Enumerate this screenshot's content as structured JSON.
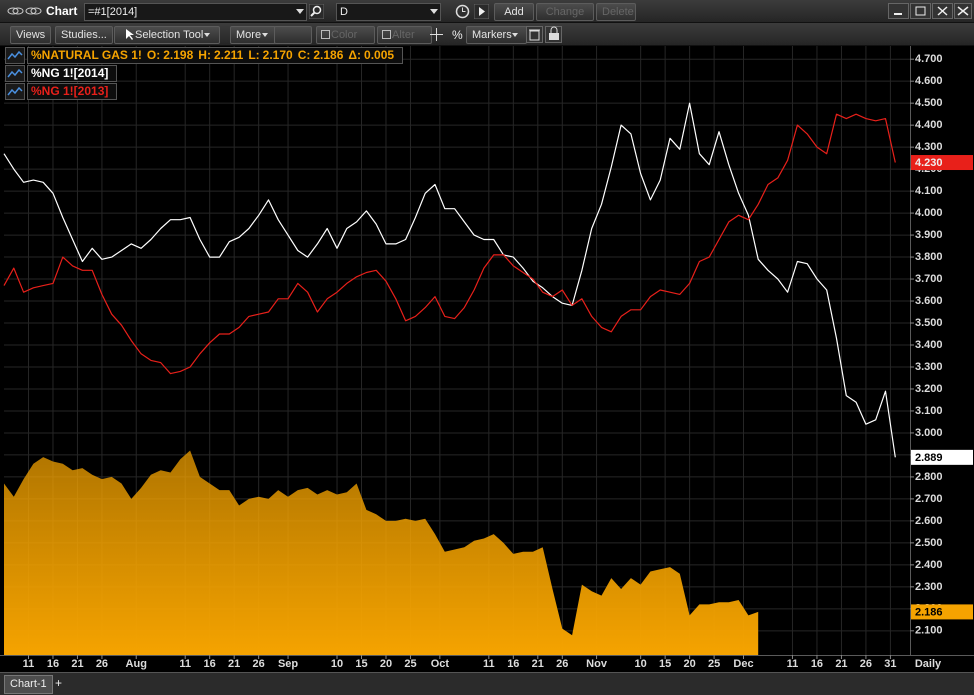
{
  "toolbar": {
    "title": "Chart",
    "symbol": "=#1[2014]",
    "search": "D",
    "add": "Add",
    "change": "Change",
    "delete": "Delete"
  },
  "toolbar2": {
    "views": "Views",
    "studies": "Studies...",
    "tool": "Selection Tool",
    "more": "More",
    "color": "Color",
    "alter": "Alter",
    "percent": "%",
    "markers": "Markers"
  },
  "tabs": {
    "active": "Chart-1",
    "add": "+"
  },
  "chart_data": {
    "type": "line",
    "x": [
      0,
      2,
      4,
      6,
      8,
      10,
      12,
      14,
      16,
      18,
      20,
      22,
      24,
      26,
      28,
      30,
      32,
      34,
      36,
      38,
      40,
      42,
      44,
      46,
      48,
      50,
      52,
      54,
      56,
      58,
      60,
      62,
      64,
      66,
      68,
      70,
      72,
      74,
      76,
      78,
      80,
      82,
      84,
      86,
      88,
      90,
      92,
      94,
      96,
      98,
      100,
      102,
      104,
      106,
      108,
      110,
      112,
      114,
      116,
      118,
      120,
      122,
      124,
      126,
      128,
      130,
      132,
      134,
      136,
      138,
      140,
      142,
      144,
      146,
      148,
      150,
      152,
      154,
      156,
      158,
      160,
      162,
      164,
      166,
      168,
      170,
      172,
      174,
      176,
      178,
      180,
      182
    ],
    "xlim": [
      0,
      185
    ],
    "xticks": [
      {
        "value": 5,
        "label": "11"
      },
      {
        "value": 10,
        "label": "16"
      },
      {
        "value": 15,
        "label": "21"
      },
      {
        "value": 20,
        "label": "26"
      },
      {
        "value": 27,
        "label": "Aug"
      },
      {
        "value": 37,
        "label": "11"
      },
      {
        "value": 42,
        "label": "16"
      },
      {
        "value": 47,
        "label": "21"
      },
      {
        "value": 52,
        "label": "26"
      },
      {
        "value": 58,
        "label": "Sep"
      },
      {
        "value": 68,
        "label": "10"
      },
      {
        "value": 73,
        "label": "15"
      },
      {
        "value": 78,
        "label": "20"
      },
      {
        "value": 83,
        "label": "25"
      },
      {
        "value": 89,
        "label": "Oct"
      },
      {
        "value": 99,
        "label": "11"
      },
      {
        "value": 104,
        "label": "16"
      },
      {
        "value": 109,
        "label": "21"
      },
      {
        "value": 114,
        "label": "26"
      },
      {
        "value": 121,
        "label": "Nov"
      },
      {
        "value": 130,
        "label": "10"
      },
      {
        "value": 135,
        "label": "15"
      },
      {
        "value": 140,
        "label": "20"
      },
      {
        "value": 145,
        "label": "25"
      },
      {
        "value": 151,
        "label": "Dec"
      },
      {
        "value": 161,
        "label": "11"
      },
      {
        "value": 166,
        "label": "16"
      },
      {
        "value": 171,
        "label": "21"
      },
      {
        "value": 176,
        "label": "26"
      },
      {
        "value": 181,
        "label": "31"
      }
    ],
    "x_interval": "Daily",
    "ylim": [
      1.99,
      4.76
    ],
    "yticks": [
      {
        "value": 4.7,
        "label": "4.700"
      },
      {
        "value": 4.6,
        "label": "4.600"
      },
      {
        "value": 4.5,
        "label": "4.500"
      },
      {
        "value": 4.4,
        "label": "4.400"
      },
      {
        "value": 4.3,
        "label": "4.300"
      },
      {
        "value": 4.2,
        "label": "4.200"
      },
      {
        "value": 4.1,
        "label": "4.100"
      },
      {
        "value": 4.0,
        "label": "4.000"
      },
      {
        "value": 3.9,
        "label": "3.900"
      },
      {
        "value": 3.8,
        "label": "3.800"
      },
      {
        "value": 3.7,
        "label": "3.700"
      },
      {
        "value": 3.6,
        "label": "3.600"
      },
      {
        "value": 3.5,
        "label": "3.500"
      },
      {
        "value": 3.4,
        "label": "3.400"
      },
      {
        "value": 3.3,
        "label": "3.300"
      },
      {
        "value": 3.2,
        "label": "3.200"
      },
      {
        "value": 3.1,
        "label": "3.100"
      },
      {
        "value": 3.0,
        "label": "3.000"
      },
      {
        "value": 2.9,
        "label": "2.900"
      },
      {
        "value": 2.8,
        "label": "2.800"
      },
      {
        "value": 2.7,
        "label": "2.700"
      },
      {
        "value": 2.6,
        "label": "2.600"
      },
      {
        "value": 2.5,
        "label": "2.500"
      },
      {
        "value": 2.4,
        "label": "2.400"
      },
      {
        "value": 2.3,
        "label": "2.300"
      },
      {
        "value": 2.2,
        "label": "2.200"
      },
      {
        "value": 2.1,
        "label": "2.100"
      }
    ],
    "grid": true,
    "quote": [
      {
        "field": "O:",
        "value": 2.198
      },
      {
        "field": "H:",
        "value": 2.211
      },
      {
        "field": "L:",
        "value": 2.17,
        "label": "2.170"
      },
      {
        "field": "C:",
        "value": 2.186
      },
      {
        "field": "Δ:",
        "value": 0.005
      }
    ],
    "series": [
      {
        "name": "%NATURAL GAS 1!",
        "color": "#f5a300",
        "kind": "area",
        "last_value": 2.186,
        "values": [
          2.77,
          2.71,
          2.79,
          2.86,
          2.89,
          2.87,
          2.86,
          2.83,
          2.84,
          2.81,
          2.79,
          2.8,
          2.77,
          2.7,
          2.75,
          2.81,
          2.83,
          2.82,
          2.88,
          2.92,
          2.8,
          2.77,
          2.74,
          2.74,
          2.67,
          2.7,
          2.71,
          2.7,
          2.74,
          2.71,
          2.74,
          2.75,
          2.72,
          2.74,
          2.72,
          2.73,
          2.77,
          2.65,
          2.63,
          2.6,
          2.6,
          2.61,
          2.6,
          2.61,
          2.54,
          2.46,
          2.47,
          2.48,
          2.51,
          2.52,
          2.54,
          2.5,
          2.45,
          2.46,
          2.46,
          2.48,
          2.29,
          2.11,
          2.08,
          2.31,
          2.28,
          2.26,
          2.34,
          2.29,
          2.34,
          2.31,
          2.37,
          2.38,
          2.39,
          2.36,
          2.17,
          2.22,
          2.22,
          2.23,
          2.23,
          2.24,
          2.17,
          2.186,
          null,
          null,
          null,
          null,
          null,
          null,
          null,
          null,
          null,
          null,
          null,
          null,
          null,
          null
        ]
      },
      {
        "name": "%NG 1![2014]",
        "color": "#ffffff",
        "last_value": 2.889,
        "values": [
          4.27,
          4.2,
          4.14,
          4.15,
          4.14,
          4.09,
          3.98,
          3.88,
          3.78,
          3.84,
          3.79,
          3.8,
          3.83,
          3.86,
          3.84,
          3.88,
          3.93,
          3.97,
          3.97,
          3.98,
          3.88,
          3.8,
          3.8,
          3.87,
          3.89,
          3.93,
          3.99,
          4.06,
          3.97,
          3.9,
          3.83,
          3.8,
          3.86,
          3.93,
          3.84,
          3.93,
          3.96,
          4.01,
          3.95,
          3.86,
          3.86,
          3.88,
          3.98,
          4.09,
          4.13,
          4.02,
          4.02,
          3.96,
          3.9,
          3.88,
          3.88,
          3.81,
          3.8,
          3.75,
          3.69,
          3.66,
          3.62,
          3.59,
          3.58,
          3.74,
          3.93,
          4.04,
          4.21,
          4.4,
          4.36,
          4.18,
          4.06,
          4.15,
          4.34,
          4.29,
          4.5,
          4.27,
          4.22,
          4.37,
          4.22,
          4.09,
          3.99,
          3.79,
          3.74,
          3.7,
          3.64,
          3.78,
          3.77,
          3.7,
          3.65,
          3.43,
          3.17,
          3.14,
          3.04,
          3.06,
          3.19,
          2.889
        ]
      },
      {
        "name": "%NG 1![2013]",
        "color": "#e8201a",
        "last_value": {
          "value": 4.23,
          "label": "4.230"
        },
        "values": [
          3.67,
          3.75,
          3.64,
          3.66,
          3.67,
          3.68,
          3.8,
          3.76,
          3.74,
          3.74,
          3.63,
          3.54,
          3.49,
          3.42,
          3.36,
          3.33,
          3.32,
          3.27,
          3.28,
          3.3,
          3.36,
          3.41,
          3.45,
          3.45,
          3.48,
          3.53,
          3.54,
          3.55,
          3.61,
          3.61,
          3.68,
          3.64,
          3.55,
          3.61,
          3.64,
          3.68,
          3.71,
          3.73,
          3.74,
          3.69,
          3.61,
          3.51,
          3.53,
          3.57,
          3.62,
          3.53,
          3.52,
          3.57,
          3.65,
          3.75,
          3.81,
          3.81,
          3.76,
          3.73,
          3.7,
          3.64,
          3.62,
          3.65,
          3.58,
          3.61,
          3.53,
          3.48,
          3.46,
          3.53,
          3.56,
          3.56,
          3.62,
          3.65,
          3.64,
          3.63,
          3.68,
          3.78,
          3.8,
          3.88,
          3.96,
          3.99,
          3.97,
          4.04,
          4.13,
          4.16,
          4.24,
          4.4,
          4.36,
          4.3,
          4.27,
          4.45,
          4.43,
          4.45,
          4.43,
          4.42,
          4.43,
          4.23
        ]
      }
    ]
  }
}
